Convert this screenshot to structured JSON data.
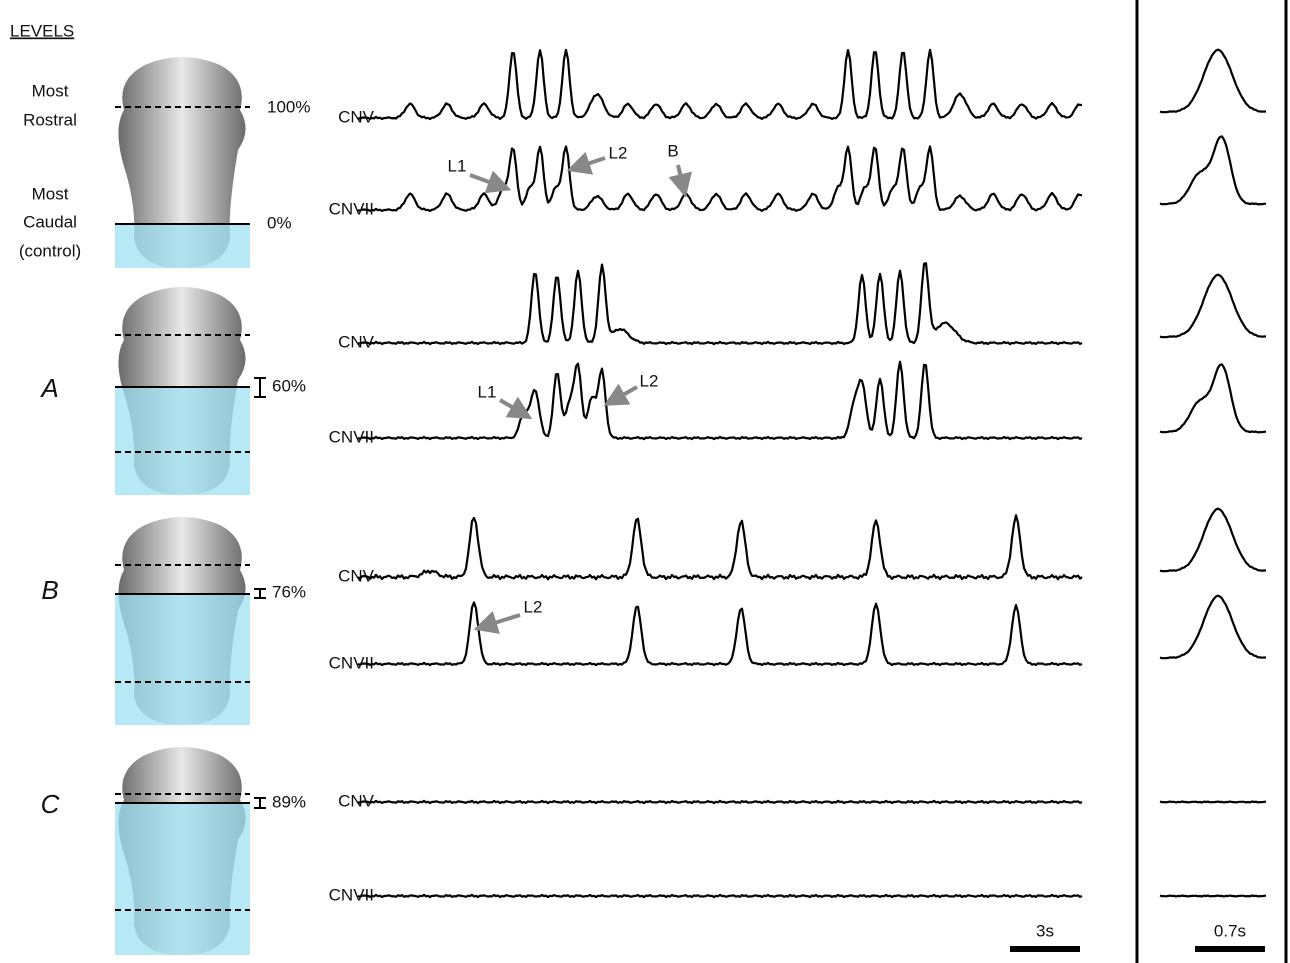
{
  "levels_title": "LEVELS",
  "panels": [
    {
      "labels": [
        {
          "lines": [
            "Most",
            "Rostral"
          ]
        },
        {
          "lines": [
            "Most",
            "Caudal",
            "(control)"
          ]
        }
      ],
      "levels": [
        "100%",
        "0%"
      ],
      "traces": [
        {
          "name": "CNV",
          "annotations": []
        },
        {
          "name": "CNVII",
          "annotations": [
            "L1",
            "L2",
            "B"
          ]
        }
      ]
    },
    {
      "labels": [
        {
          "lines": [
            "A"
          ]
        }
      ],
      "levels": [
        "60%"
      ],
      "traces": [
        {
          "name": "CNV",
          "annotations": []
        },
        {
          "name": "CNVII",
          "annotations": [
            "L1",
            "L2"
          ]
        }
      ]
    },
    {
      "labels": [
        {
          "lines": [
            "B"
          ]
        }
      ],
      "levels": [
        "76%"
      ],
      "traces": [
        {
          "name": "CNV",
          "annotations": []
        },
        {
          "name": "CNVII",
          "annotations": [
            "L2"
          ]
        }
      ]
    },
    {
      "labels": [
        {
          "lines": [
            "C"
          ]
        }
      ],
      "levels": [
        "89%"
      ],
      "traces": [
        {
          "name": "CNV",
          "annotations": []
        },
        {
          "name": "CNVII",
          "annotations": []
        }
      ]
    }
  ],
  "scale_bars": [
    "3s",
    "0.7s"
  ]
}
